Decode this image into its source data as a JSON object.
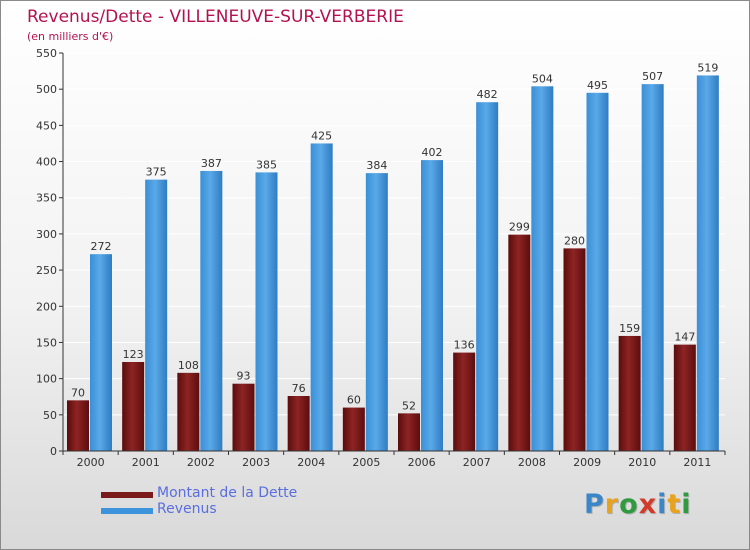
{
  "chart_data": {
    "type": "bar",
    "title": "Revenus/Dette - VILLENEUVE-SUR-VERBERIE",
    "subtitle": "(en milliers d'€)",
    "categories": [
      "2000",
      "2001",
      "2002",
      "2003",
      "2004",
      "2005",
      "2006",
      "2007",
      "2008",
      "2009",
      "2010",
      "2011"
    ],
    "series": [
      {
        "name": "Montant de la Dette",
        "color": "#7a1a1a",
        "values": [
          70,
          123,
          108,
          93,
          76,
          60,
          52,
          136,
          299,
          280,
          159,
          147
        ]
      },
      {
        "name": "Revenus",
        "color": "#3d94dc",
        "values": [
          272,
          375,
          387,
          385,
          425,
          384,
          402,
          482,
          504,
          495,
          507,
          519
        ]
      }
    ],
    "ylim": [
      0,
      550
    ],
    "yticks": [
      0,
      50,
      100,
      150,
      200,
      250,
      300,
      350,
      400,
      450,
      500,
      550
    ],
    "grid": true,
    "legend_position": "bottom-left"
  },
  "branding": {
    "logo_text": "Proxiti",
    "logo_colors": [
      "#3a86c8",
      "#e8a21e",
      "#2f9a3e",
      "#d23a2a",
      "#3a86c8",
      "#e8a21e",
      "#2f9a3e"
    ]
  }
}
